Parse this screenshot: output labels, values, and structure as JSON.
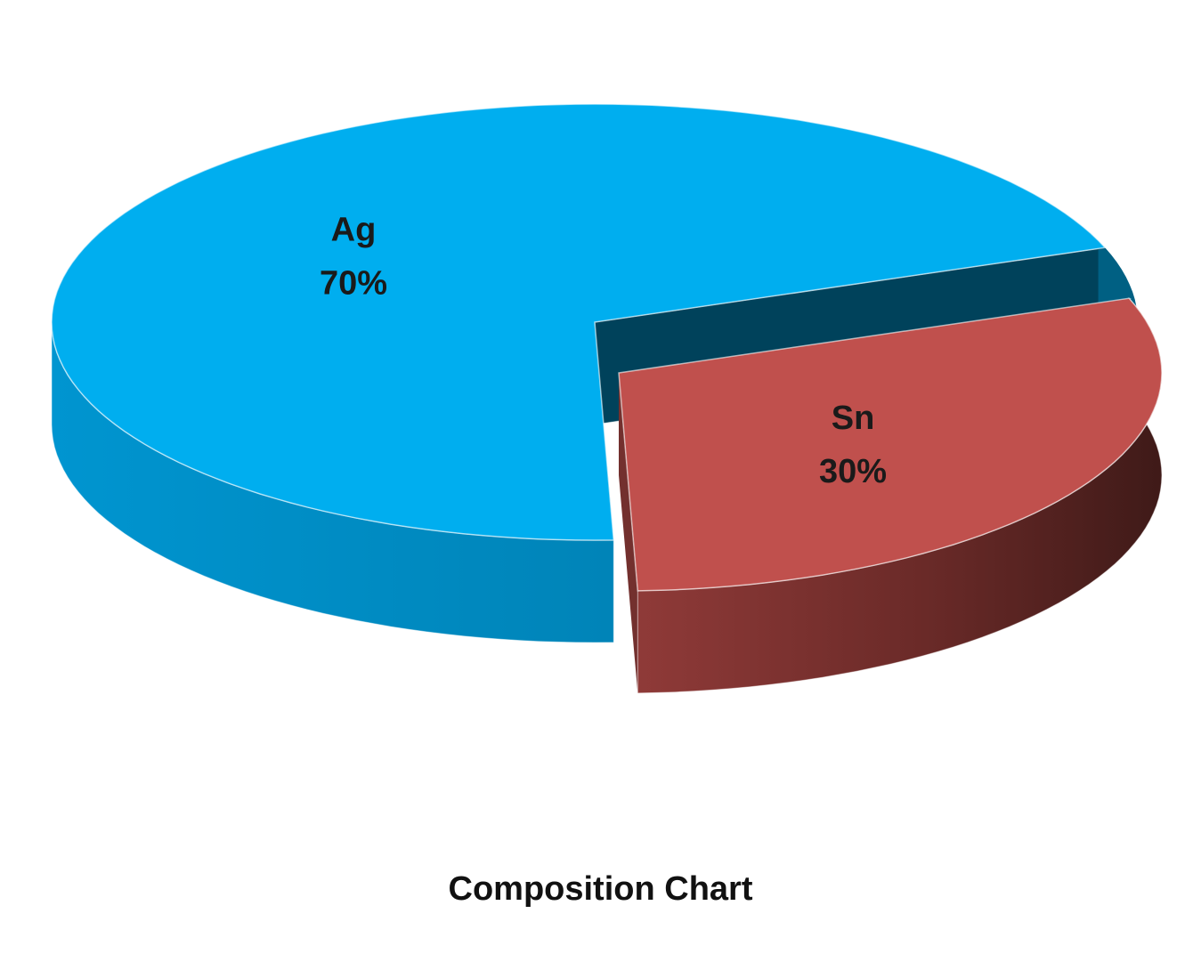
{
  "chart_data": {
    "type": "pie",
    "title": "Composition Chart",
    "slices": [
      {
        "label": "Ag",
        "value": 70,
        "value_label": "70%",
        "color": "#00aeef",
        "exploded": false
      },
      {
        "label": "Sn",
        "value": 30,
        "value_label": "30%",
        "color": "#c0504d",
        "exploded": true
      }
    ],
    "style": "3d-exploded",
    "legend": "none"
  }
}
